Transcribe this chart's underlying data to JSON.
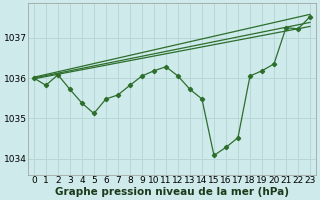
{
  "background_color": "#ceeaea",
  "grid_color": "#b8d8d8",
  "line_color": "#2d6e2d",
  "xlim": [
    -0.5,
    23.5
  ],
  "ylim": [
    1033.6,
    1037.85
  ],
  "yticks": [
    1034,
    1035,
    1036,
    1037
  ],
  "xticks": [
    0,
    1,
    2,
    3,
    4,
    5,
    6,
    7,
    8,
    9,
    10,
    11,
    12,
    13,
    14,
    15,
    16,
    17,
    18,
    19,
    20,
    21,
    22,
    23
  ],
  "main_x": [
    0,
    1,
    2,
    3,
    4,
    5,
    6,
    7,
    8,
    9,
    10,
    11,
    12,
    13,
    14,
    15,
    16,
    17,
    18,
    19,
    20,
    21,
    22,
    23
  ],
  "main_y": [
    1036.0,
    1035.82,
    1036.08,
    1035.72,
    1035.38,
    1035.12,
    1035.48,
    1035.58,
    1035.82,
    1036.05,
    1036.18,
    1036.28,
    1036.05,
    1035.72,
    1035.48,
    1034.08,
    1034.28,
    1034.52,
    1036.05,
    1036.18,
    1036.35,
    1037.25,
    1037.22,
    1037.52
  ],
  "trend1_x": [
    0,
    23
  ],
  "trend1_y": [
    1036.02,
    1037.58
  ],
  "trend2_x": [
    0,
    23
  ],
  "trend2_y": [
    1036.0,
    1037.38
  ],
  "trend3_x": [
    0,
    23
  ],
  "trend3_y": [
    1035.98,
    1037.28
  ],
  "xlabel": "Graphe pression niveau de la mer (hPa)",
  "xlabel_fontsize": 7.5,
  "tick_fontsize": 6.5
}
